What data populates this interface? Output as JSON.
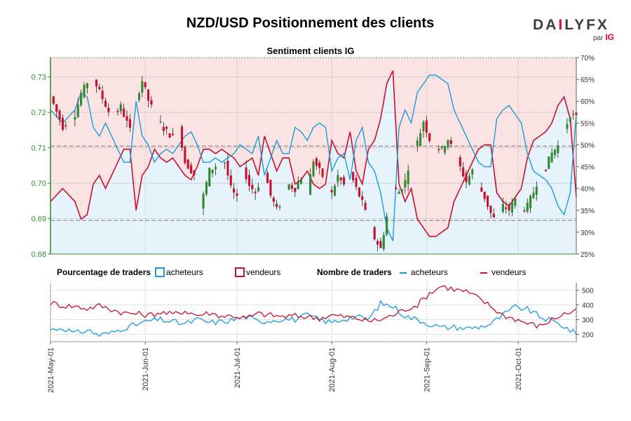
{
  "page": {
    "title": "NZD/USD Positionnement des clients",
    "logo": {
      "main_a": "DA",
      "main_i": "I",
      "main_b": "LY",
      "main_fx": "FX",
      "sub": "par",
      "sub_brand": "IG"
    }
  },
  "colors": {
    "buyers": "#1a9bdc",
    "sellers": "#c8102e",
    "buyers_fill": "#e6f3fb",
    "sellers_fill": "#fbe3e3",
    "candle_up": "#2e8b2e",
    "candle_down": "#c8102e",
    "price_axis": "#2e8b2e"
  },
  "legend": {
    "pct_label": "Pourcentage de traders",
    "pct_buyers": "acheteurs",
    "pct_sellers": "vendeurs",
    "count_label": "Nombre de traders",
    "count_buyers": "acheteurs",
    "count_sellers": "vendeurs"
  },
  "chart_data": [
    {
      "type": "candlestick",
      "title": "Sentiment clients IG",
      "price_axis": {
        "ticks": [
          "0.73",
          "0.72",
          "0.71",
          "0.70",
          "0.69",
          "0.68"
        ],
        "ylim": [
          0.68,
          0.7355
        ]
      },
      "sentiment_axis": {
        "ticks": [
          "70%",
          "65%",
          "60%",
          "55%",
          "50%",
          "45%",
          "40%",
          "35%",
          "30%",
          "25%"
        ],
        "ylim": [
          25,
          70
        ]
      },
      "x_ticks": [
        "2021-May-01",
        "2021-Jun-01",
        "2021-Jul-01",
        "2021-Aug-01",
        "2021-Sep-01",
        "2021-Oct-01"
      ],
      "x_tick_index": [
        0,
        31,
        61,
        92,
        123,
        153
      ],
      "reference_lines": [
        0.7105,
        0.6895
      ],
      "price_anchors": [
        [
          0,
          0.7245
        ],
        [
          4,
          0.716
        ],
        [
          8,
          0.7195
        ],
        [
          10,
          0.725
        ],
        [
          12,
          0.7285
        ],
        [
          14,
          0.7295
        ],
        [
          17,
          0.724
        ],
        [
          20,
          0.7185
        ],
        [
          23,
          0.7215
        ],
        [
          26,
          0.715
        ],
        [
          28,
          0.7235
        ],
        [
          30,
          0.729
        ],
        [
          32,
          0.7235
        ],
        [
          34,
          0.7195
        ],
        [
          37,
          0.7155
        ],
        [
          40,
          0.713
        ],
        [
          42,
          0.716
        ],
        [
          44,
          0.706
        ],
        [
          47,
          0.7025
        ],
        [
          49,
          0.693
        ],
        [
          52,
          0.7035
        ],
        [
          55,
          0.7055
        ],
        [
          57,
          0.706
        ],
        [
          59,
          0.6985
        ],
        [
          61,
          0.6955
        ],
        [
          63,
          0.7045
        ],
        [
          65,
          0.6995
        ],
        [
          67,
          0.6975
        ],
        [
          70,
          0.7035
        ],
        [
          72,
          0.6965
        ],
        [
          74,
          0.6925
        ],
        [
          76,
          0.6955
        ],
        [
          78,
          0.6995
        ],
        [
          80,
          0.6985
        ],
        [
          82,
          0.7015
        ],
        [
          84,
          0.6975
        ],
        [
          86,
          0.7065
        ],
        [
          88,
          0.7035
        ],
        [
          90,
          0.7005
        ],
        [
          92,
          0.697
        ],
        [
          94,
          0.702
        ],
        [
          96,
          0.6995
        ],
        [
          98,
          0.703
        ],
        [
          100,
          0.6985
        ],
        [
          102,
          0.6945
        ],
        [
          104,
          0.689
        ],
        [
          106,
          0.6845
        ],
        [
          108,
          0.6815
        ],
        [
          110,
          0.6905
        ],
        [
          112,
          0.6985
        ],
        [
          114,
          0.6975
        ],
        [
          116,
          0.7005
        ],
        [
          118,
          0.7085
        ],
        [
          120,
          0.7115
        ],
        [
          122,
          0.7175
        ],
        [
          124,
          0.7125
        ],
        [
          126,
          0.7105
        ],
        [
          128,
          0.7095
        ],
        [
          130,
          0.7125
        ],
        [
          132,
          0.7085
        ],
        [
          134,
          0.7045
        ],
        [
          136,
          0.7005
        ],
        [
          138,
          0.7035
        ],
        [
          140,
          0.6995
        ],
        [
          142,
          0.696
        ],
        [
          144,
          0.6915
        ],
        [
          146,
          0.6885
        ],
        [
          148,
          0.6935
        ],
        [
          150,
          0.6925
        ],
        [
          152,
          0.6955
        ],
        [
          154,
          0.6925
        ],
        [
          156,
          0.6935
        ],
        [
          158,
          0.6975
        ],
        [
          160,
          0.7025
        ],
        [
          162,
          0.7045
        ],
        [
          164,
          0.7085
        ],
        [
          166,
          0.7105
        ],
        [
          168,
          0.7145
        ],
        [
          170,
          0.7195
        ],
        [
          172,
          0.7185
        ]
      ],
      "sentiment_anchors": [
        [
          0,
          37
        ],
        [
          4,
          40
        ],
        [
          8,
          37
        ],
        [
          10,
          33
        ],
        [
          12,
          34
        ],
        [
          14,
          41
        ],
        [
          16,
          43
        ],
        [
          18,
          40
        ],
        [
          20,
          43
        ],
        [
          22,
          46
        ],
        [
          24,
          49
        ],
        [
          26,
          49
        ],
        [
          28,
          35
        ],
        [
          30,
          43
        ],
        [
          32,
          45
        ],
        [
          34,
          49
        ],
        [
          36,
          47
        ],
        [
          38,
          46
        ],
        [
          40,
          47
        ],
        [
          42,
          45
        ],
        [
          44,
          43
        ],
        [
          46,
          42
        ],
        [
          48,
          45
        ],
        [
          50,
          49
        ],
        [
          52,
          49
        ],
        [
          54,
          48
        ],
        [
          56,
          49
        ],
        [
          58,
          48
        ],
        [
          60,
          47
        ],
        [
          62,
          45
        ],
        [
          64,
          46
        ],
        [
          66,
          47
        ],
        [
          68,
          43
        ],
        [
          70,
          52
        ],
        [
          72,
          48
        ],
        [
          74,
          44
        ],
        [
          76,
          47
        ],
        [
          78,
          47
        ],
        [
          80,
          41
        ],
        [
          82,
          42
        ],
        [
          84,
          44
        ],
        [
          86,
          41
        ],
        [
          88,
          40
        ],
        [
          90,
          41
        ],
        [
          92,
          51
        ],
        [
          94,
          48
        ],
        [
          96,
          47
        ],
        [
          98,
          53
        ],
        [
          100,
          44
        ],
        [
          102,
          41
        ],
        [
          104,
          49
        ],
        [
          106,
          51
        ],
        [
          108,
          56
        ],
        [
          110,
          64
        ],
        [
          112,
          67
        ],
        [
          114,
          41
        ],
        [
          116,
          37
        ],
        [
          118,
          40
        ],
        [
          120,
          33
        ],
        [
          122,
          31
        ],
        [
          124,
          29
        ],
        [
          126,
          29
        ],
        [
          128,
          30
        ],
        [
          130,
          31
        ],
        [
          132,
          37
        ],
        [
          134,
          40
        ],
        [
          136,
          43
        ],
        [
          138,
          46
        ],
        [
          140,
          49
        ],
        [
          142,
          50
        ],
        [
          144,
          50
        ],
        [
          146,
          39
        ],
        [
          148,
          37
        ],
        [
          150,
          36
        ],
        [
          152,
          38
        ],
        [
          154,
          40
        ],
        [
          156,
          47
        ],
        [
          158,
          51
        ],
        [
          160,
          52
        ],
        [
          162,
          53
        ],
        [
          164,
          55
        ],
        [
          166,
          59
        ],
        [
          168,
          61
        ],
        [
          170,
          56
        ],
        [
          172,
          38
        ]
      ]
    },
    {
      "type": "line",
      "series": [
        {
          "name": "acheteurs",
          "anchors": [
            [
              0,
              230
            ],
            [
              4,
              245
            ],
            [
              8,
              205
            ],
            [
              12,
              230
            ],
            [
              16,
              195
            ],
            [
              20,
              210
            ],
            [
              24,
              245
            ],
            [
              28,
              265
            ],
            [
              32,
              290
            ],
            [
              36,
              300
            ],
            [
              40,
              285
            ],
            [
              44,
              270
            ],
            [
              48,
              300
            ],
            [
              52,
              280
            ],
            [
              56,
              285
            ],
            [
              60,
              300
            ],
            [
              64,
              320
            ],
            [
              68,
              285
            ],
            [
              72,
              295
            ],
            [
              76,
              305
            ],
            [
              80,
              300
            ],
            [
              84,
              330
            ],
            [
              88,
              300
            ],
            [
              92,
              280
            ],
            [
              96,
              305
            ],
            [
              100,
              320
            ],
            [
              104,
              300
            ],
            [
              108,
              410
            ],
            [
              112,
              390
            ],
            [
              116,
              325
            ],
            [
              120,
              300
            ],
            [
              124,
              270
            ],
            [
              128,
              245
            ],
            [
              132,
              250
            ],
            [
              136,
              240
            ],
            [
              140,
              250
            ],
            [
              144,
              270
            ],
            [
              148,
              330
            ],
            [
              152,
              385
            ],
            [
              156,
              370
            ],
            [
              160,
              320
            ],
            [
              164,
              290
            ],
            [
              168,
              255
            ],
            [
              172,
              200
            ]
          ]
        },
        {
          "name": "vendeurs",
          "anchors": [
            [
              0,
              415
            ],
            [
              4,
              395
            ],
            [
              8,
              390
            ],
            [
              12,
              375
            ],
            [
              16,
              395
            ],
            [
              20,
              370
            ],
            [
              24,
              345
            ],
            [
              28,
              340
            ],
            [
              32,
              330
            ],
            [
              36,
              350
            ],
            [
              40,
              335
            ],
            [
              44,
              360
            ],
            [
              48,
              330
            ],
            [
              52,
              345
            ],
            [
              56,
              325
            ],
            [
              60,
              325
            ],
            [
              64,
              310
            ],
            [
              68,
              340
            ],
            [
              72,
              330
            ],
            [
              76,
              320
            ],
            [
              80,
              325
            ],
            [
              84,
              320
            ],
            [
              88,
              310
            ],
            [
              92,
              330
            ],
            [
              96,
              320
            ],
            [
              100,
              310
            ],
            [
              104,
              290
            ],
            [
              108,
              300
            ],
            [
              112,
              330
            ],
            [
              116,
              370
            ],
            [
              120,
              400
            ],
            [
              124,
              480
            ],
            [
              128,
              530
            ],
            [
              132,
              505
            ],
            [
              136,
              490
            ],
            [
              140,
              445
            ],
            [
              144,
              390
            ],
            [
              148,
              330
            ],
            [
              152,
              305
            ],
            [
              156,
              275
            ],
            [
              160,
              255
            ],
            [
              164,
              300
            ],
            [
              168,
              340
            ],
            [
              172,
              355
            ]
          ]
        }
      ],
      "y_ticks": [
        "500",
        "400",
        "300",
        "200"
      ],
      "ylim": [
        150,
        550
      ]
    }
  ]
}
